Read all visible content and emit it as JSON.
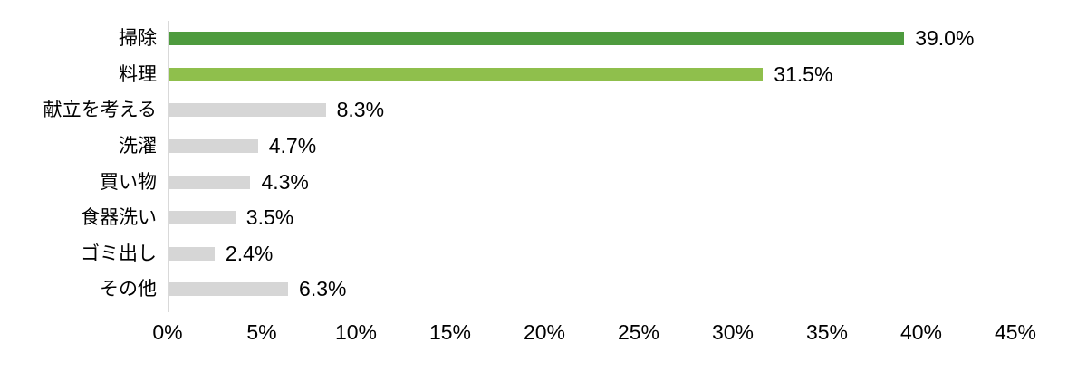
{
  "chart_data": {
    "type": "bar",
    "orientation": "horizontal",
    "title": "",
    "xlabel": "",
    "ylabel": "",
    "categories": [
      "掃除",
      "料理",
      "献立を考える",
      "洗濯",
      "買い物",
      "食器洗い",
      "ゴミ出し",
      "その他"
    ],
    "values": [
      39.0,
      31.5,
      8.3,
      4.7,
      4.3,
      3.5,
      2.4,
      6.3
    ],
    "value_labels": [
      "39.0%",
      "31.5%",
      "8.3%",
      "4.7%",
      "4.3%",
      "3.5%",
      "2.4%",
      "6.3%"
    ],
    "bar_colors": [
      "#4e9b3e",
      "#8fbf4c",
      "#d6d6d6",
      "#d6d6d6",
      "#d6d6d6",
      "#d6d6d6",
      "#d6d6d6",
      "#d6d6d6"
    ],
    "x_ticks": [
      "0%",
      "5%",
      "10%",
      "15%",
      "20%",
      "25%",
      "30%",
      "35%",
      "40%",
      "45%"
    ],
    "x_tick_values": [
      0,
      5,
      10,
      15,
      20,
      25,
      30,
      35,
      40,
      45
    ],
    "xlim": [
      0,
      45
    ],
    "grid": false,
    "legend": false
  },
  "colors": {
    "bar_dark_green": "#4e9b3e",
    "bar_light_green": "#8fbf4c",
    "bar_gray": "#d6d6d6",
    "axis_line": "#d9d9d9",
    "text": "#000000",
    "background": "#ffffff"
  }
}
